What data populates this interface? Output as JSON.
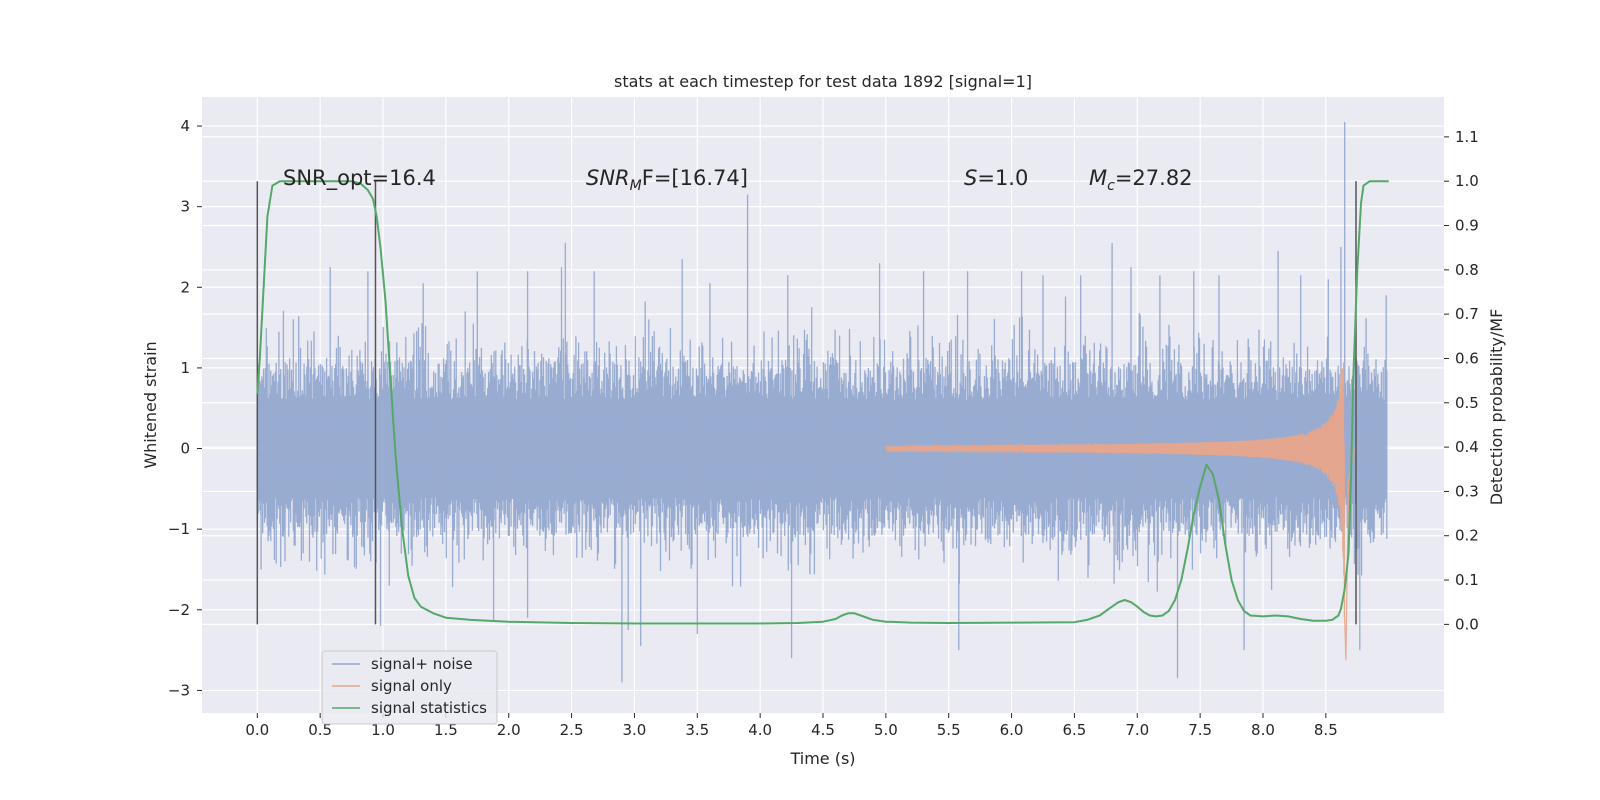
{
  "chart_data": {
    "type": "line",
    "title": "stats at each timestep for test data 1892 [signal=1]",
    "xlabel": "Time (s)",
    "ylabel": "Whitened strain",
    "y2label": "Detection probability/MF",
    "xlim": [
      -0.44,
      9.44
    ],
    "ylim": [
      -3.28,
      4.36
    ],
    "y2lim": [
      -0.2,
      1.19
    ],
    "xticks": [
      "0.0",
      "0.5",
      "1.0",
      "1.5",
      "2.0",
      "2.5",
      "3.0",
      "3.5",
      "4.0",
      "4.5",
      "5.0",
      "5.5",
      "6.0",
      "6.5",
      "7.0",
      "7.5",
      "8.0",
      "8.5"
    ],
    "xtick_values": [
      0,
      0.5,
      1,
      1.5,
      2,
      2.5,
      3,
      3.5,
      4,
      4.5,
      5,
      5.5,
      6,
      6.5,
      7,
      7.5,
      8,
      8.5
    ],
    "yticks": [
      "−3",
      "−2",
      "−1",
      "0",
      "1",
      "2",
      "3",
      "4"
    ],
    "ytick_values": [
      -3,
      -2,
      -1,
      0,
      1,
      2,
      3,
      4
    ],
    "y2ticks": [
      "0.0",
      "0.1",
      "0.2",
      "0.3",
      "0.4",
      "0.5",
      "0.6",
      "0.7",
      "0.8",
      "0.9",
      "1.0",
      "1.1"
    ],
    "y2tick_values": [
      0,
      0.1,
      0.2,
      0.3,
      0.4,
      0.5,
      0.6,
      0.7,
      0.8,
      0.9,
      1.0,
      1.1
    ],
    "grid": true,
    "legend": {
      "location": "lower-left",
      "entries": [
        {
          "label": "signal+ noise",
          "color": "#8fa4cc"
        },
        {
          "label": "signal only",
          "color": "#e8a58a"
        },
        {
          "label": "signal statistics",
          "color": "#55a868"
        }
      ]
    },
    "annotations": {
      "snr_opt": "SNR_opt=16.4",
      "snr_mf_main": "SNR",
      "snr_mf_sub": "M",
      "snr_mf_rest": "F=[16.74]",
      "s_main": "S",
      "s_rest": "=1.0",
      "mc_main": "M",
      "mc_sub": "c",
      "mc_rest": "=27.82"
    },
    "vertical_markers_x": [
      0.0,
      0.94,
      8.74
    ],
    "noise": {
      "name": "signal+ noise",
      "x_range": [
        0.0,
        8.99
      ],
      "typical_envelope": [
        -1.1,
        1.1
      ],
      "spikes": [
        {
          "x": 0.03,
          "y": -1.5
        },
        {
          "x": 0.22,
          "y": -1.4
        },
        {
          "x": 0.58,
          "y": 2.25
        },
        {
          "x": 0.88,
          "y": 2.2
        },
        {
          "x": 0.98,
          "y": -2.2
        },
        {
          "x": 1.05,
          "y": -1.7
        },
        {
          "x": 1.32,
          "y": 2.05
        },
        {
          "x": 1.75,
          "y": 2.2
        },
        {
          "x": 1.88,
          "y": -2.15
        },
        {
          "x": 2.15,
          "y": 2.2
        },
        {
          "x": 2.15,
          "y": -2.1
        },
        {
          "x": 2.42,
          "y": 2.25
        },
        {
          "x": 2.45,
          "y": 2.55
        },
        {
          "x": 2.68,
          "y": 2.2
        },
        {
          "x": 2.9,
          "y": -2.9
        },
        {
          "x": 2.95,
          "y": -2.25
        },
        {
          "x": 3.05,
          "y": -2.45
        },
        {
          "x": 3.38,
          "y": 2.35
        },
        {
          "x": 3.5,
          "y": -2.3
        },
        {
          "x": 3.6,
          "y": 2.05
        },
        {
          "x": 3.9,
          "y": 3.15
        },
        {
          "x": 4.22,
          "y": 2.15
        },
        {
          "x": 4.25,
          "y": -2.6
        },
        {
          "x": 4.95,
          "y": 2.3
        },
        {
          "x": 5.3,
          "y": 2.2
        },
        {
          "x": 5.58,
          "y": -2.5
        },
        {
          "x": 5.65,
          "y": 2.2
        },
        {
          "x": 6.08,
          "y": 2.2
        },
        {
          "x": 6.25,
          "y": 2.15
        },
        {
          "x": 6.55,
          "y": 2.15
        },
        {
          "x": 6.8,
          "y": 2.55
        },
        {
          "x": 6.95,
          "y": 2.25
        },
        {
          "x": 7.18,
          "y": 2.15
        },
        {
          "x": 7.32,
          "y": -2.85
        },
        {
          "x": 7.45,
          "y": 2.2
        },
        {
          "x": 7.65,
          "y": 2.15
        },
        {
          "x": 7.85,
          "y": -2.5
        },
        {
          "x": 8.12,
          "y": 2.45
        },
        {
          "x": 8.3,
          "y": 2.15
        },
        {
          "x": 8.52,
          "y": 2.1
        },
        {
          "x": 8.65,
          "y": 4.05
        },
        {
          "x": 8.62,
          "y": 2.5
        },
        {
          "x": 8.77,
          "y": -2.5
        },
        {
          "x": 8.98,
          "y": 1.9
        }
      ]
    },
    "signal_only": {
      "name": "signal only",
      "type": "chirp",
      "x_start": 5.0,
      "merger_x": 8.65,
      "peak_amplitude": 2.35,
      "min_value": -2.62,
      "ringdown_end_x": 8.73
    },
    "statistics": {
      "name": "signal statistics",
      "axis": "right",
      "x": [
        0.0,
        0.02,
        0.05,
        0.08,
        0.12,
        0.18,
        0.25,
        0.35,
        0.5,
        0.65,
        0.75,
        0.82,
        0.88,
        0.92,
        0.95,
        0.98,
        1.02,
        1.06,
        1.1,
        1.15,
        1.2,
        1.25,
        1.3,
        1.4,
        1.5,
        1.7,
        2.0,
        2.5,
        3.0,
        3.5,
        4.0,
        4.3,
        4.5,
        4.6,
        4.65,
        4.7,
        4.75,
        4.8,
        4.9,
        5.0,
        5.2,
        5.5,
        6.0,
        6.5,
        6.6,
        6.7,
        6.8,
        6.85,
        6.9,
        6.95,
        7.0,
        7.05,
        7.1,
        7.15,
        7.2,
        7.25,
        7.3,
        7.35,
        7.4,
        7.45,
        7.5,
        7.55,
        7.6,
        7.65,
        7.7,
        7.75,
        7.8,
        7.85,
        7.9,
        8.0,
        8.1,
        8.2,
        8.3,
        8.4,
        8.5,
        8.55,
        8.6,
        8.62,
        8.65,
        8.68,
        8.7,
        8.72,
        8.75,
        8.78,
        8.8,
        8.85,
        8.9,
        8.95,
        9.0
      ],
      "y": [
        0.52,
        0.6,
        0.76,
        0.92,
        0.99,
        1.0,
        1.0,
        1.0,
        1.0,
        1.0,
        1.0,
        0.995,
        0.98,
        0.96,
        0.92,
        0.85,
        0.73,
        0.55,
        0.38,
        0.22,
        0.11,
        0.06,
        0.04,
        0.025,
        0.015,
        0.01,
        0.006,
        0.003,
        0.002,
        0.002,
        0.002,
        0.003,
        0.006,
        0.012,
        0.02,
        0.025,
        0.025,
        0.02,
        0.01,
        0.006,
        0.004,
        0.003,
        0.004,
        0.005,
        0.01,
        0.02,
        0.04,
        0.05,
        0.055,
        0.05,
        0.04,
        0.028,
        0.02,
        0.018,
        0.02,
        0.03,
        0.055,
        0.1,
        0.17,
        0.25,
        0.31,
        0.36,
        0.34,
        0.28,
        0.18,
        0.1,
        0.055,
        0.03,
        0.02,
        0.018,
        0.02,
        0.018,
        0.012,
        0.008,
        0.008,
        0.01,
        0.02,
        0.035,
        0.08,
        0.16,
        0.33,
        0.57,
        0.8,
        0.95,
        0.99,
        1.0,
        1.0,
        1.0,
        1.0
      ]
    }
  }
}
